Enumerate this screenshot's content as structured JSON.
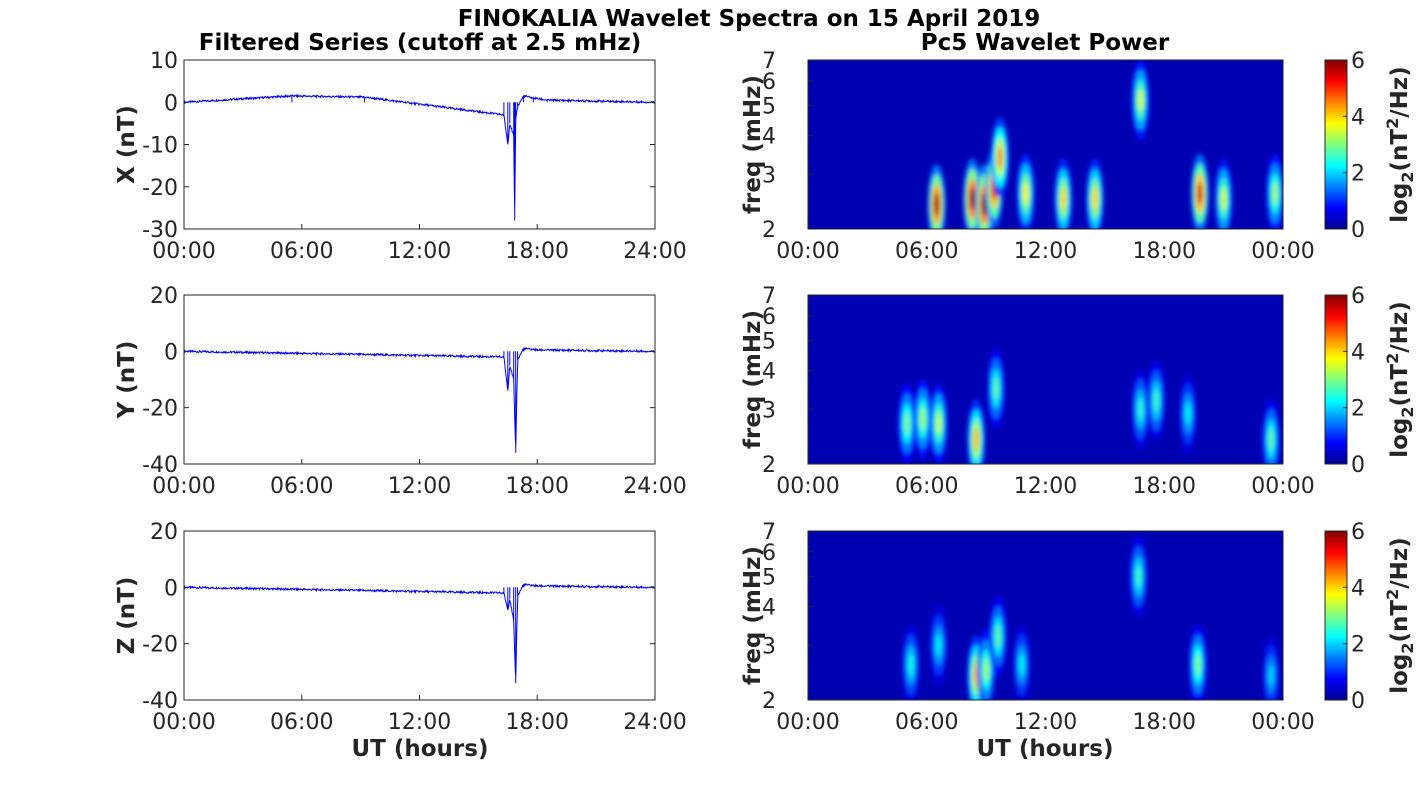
{
  "figure": {
    "title": "FINOKALIA Wavelet Spectra on 15 April 2019",
    "left_title": "Filtered Series (cutoff at 2.5 mHz)",
    "right_title": "Pc5 Wavelet Power",
    "xlabel": "UT (hours)",
    "freq_label": "freq (mHz)",
    "cbar_label": "log2(nT2/Hz)"
  },
  "chart_data": [
    {
      "type": "line",
      "name": "x-series",
      "ylabel": "X (nT)",
      "xlim": [
        0,
        24
      ],
      "ylim": [
        -30,
        10
      ],
      "yticks": [
        "10",
        "0",
        "-10",
        "-20",
        "-30"
      ],
      "xticks": [
        "00:00",
        "06:00",
        "12:00",
        "18:00",
        "24:00"
      ],
      "color": "#0000ff",
      "x": [
        0,
        5.5,
        9.2,
        16.3,
        16.5,
        16.6,
        16.8,
        16.85,
        16.9,
        17.0,
        17.3,
        17.8,
        18.5,
        24
      ],
      "y": [
        0,
        1.5,
        1.2,
        -3,
        -10,
        -5,
        -8,
        -28,
        -4,
        -1,
        1.5,
        1,
        0.5,
        0
      ]
    },
    {
      "type": "line",
      "name": "y-series",
      "ylabel": "Y (nT)",
      "xlim": [
        0,
        24
      ],
      "ylim": [
        -40,
        20
      ],
      "yticks": [
        "20",
        "0",
        "-20",
        "-40"
      ],
      "xticks": [
        "00:00",
        "06:00",
        "12:00",
        "18:00",
        "24:00"
      ],
      "color": "#0000ff",
      "x": [
        0,
        16.3,
        16.5,
        16.6,
        16.8,
        16.9,
        17.0,
        17.3,
        18.0,
        24
      ],
      "y": [
        0,
        -2,
        -14,
        -5,
        -10,
        -36,
        -3,
        1,
        0.5,
        0
      ]
    },
    {
      "type": "line",
      "name": "z-series",
      "ylabel": "Z (nT)",
      "xlim": [
        0,
        24
      ],
      "ylim": [
        -40,
        20
      ],
      "yticks": [
        "20",
        "0",
        "-20",
        "-40"
      ],
      "xticks": [
        "00:00",
        "06:00",
        "12:00",
        "18:00",
        "24:00"
      ],
      "color": "#0000ff",
      "x": [
        0,
        16.3,
        16.5,
        16.6,
        16.8,
        16.9,
        17.0,
        17.3,
        18.0,
        24
      ],
      "y": [
        0,
        -2,
        -8,
        -4,
        -12,
        -34,
        -3,
        1,
        0.5,
        0
      ]
    },
    {
      "type": "heatmap",
      "name": "x-wavelet",
      "ylabel": "freq (mHz)",
      "xlim": [
        0,
        24
      ],
      "ylim": [
        2,
        7
      ],
      "yticks": [
        "7",
        "6",
        "5",
        "4",
        "3",
        "2"
      ],
      "xticks": [
        "00:00",
        "06:00",
        "12:00",
        "18:00",
        "00:00"
      ],
      "colorbar": {
        "range": [
          0,
          6
        ],
        "ticks": [
          "6",
          "4",
          "2",
          "0"
        ],
        "colormap": "jet"
      },
      "blobs": [
        {
          "t": 6.5,
          "f": 2.4,
          "v": 5.8
        },
        {
          "t": 8.3,
          "f": 2.5,
          "v": 6.0
        },
        {
          "t": 8.9,
          "f": 2.4,
          "v": 6.0
        },
        {
          "t": 9.4,
          "f": 2.7,
          "v": 5.5
        },
        {
          "t": 9.7,
          "f": 3.4,
          "v": 4.5
        },
        {
          "t": 11.0,
          "f": 2.6,
          "v": 3.8
        },
        {
          "t": 12.9,
          "f": 2.5,
          "v": 4.0
        },
        {
          "t": 14.5,
          "f": 2.5,
          "v": 4.0
        },
        {
          "t": 16.8,
          "f": 5.2,
          "v": 3.5
        },
        {
          "t": 19.8,
          "f": 2.6,
          "v": 5.5
        },
        {
          "t": 21.0,
          "f": 2.5,
          "v": 3.5
        },
        {
          "t": 23.6,
          "f": 2.6,
          "v": 3.2
        }
      ]
    },
    {
      "type": "heatmap",
      "name": "y-wavelet",
      "ylabel": "freq (mHz)",
      "xlim": [
        0,
        24
      ],
      "ylim": [
        2,
        7
      ],
      "yticks": [
        "7",
        "6",
        "5",
        "4",
        "3",
        "2"
      ],
      "xticks": [
        "00:00",
        "06:00",
        "12:00",
        "18:00",
        "00:00"
      ],
      "colorbar": {
        "range": [
          0,
          6
        ],
        "ticks": [
          "6",
          "4",
          "2",
          "0"
        ],
        "colormap": "jet"
      },
      "blobs": [
        {
          "t": 5.0,
          "f": 2.7,
          "v": 3.0
        },
        {
          "t": 5.8,
          "f": 2.8,
          "v": 3.2
        },
        {
          "t": 6.6,
          "f": 2.7,
          "v": 3.4
        },
        {
          "t": 8.5,
          "f": 2.4,
          "v": 4.2
        },
        {
          "t": 9.5,
          "f": 3.5,
          "v": 2.8
        },
        {
          "t": 16.8,
          "f": 3.0,
          "v": 2.5
        },
        {
          "t": 17.6,
          "f": 3.2,
          "v": 2.6
        },
        {
          "t": 19.2,
          "f": 2.9,
          "v": 2.2
        },
        {
          "t": 23.4,
          "f": 2.4,
          "v": 2.8
        }
      ]
    },
    {
      "type": "heatmap",
      "name": "z-wavelet",
      "ylabel": "freq (mHz)",
      "xlim": [
        0,
        24
      ],
      "ylim": [
        2,
        7
      ],
      "yticks": [
        "7",
        "6",
        "5",
        "4",
        "3",
        "2"
      ],
      "xticks": [
        "00:00",
        "06:00",
        "12:00",
        "18:00",
        "00:00"
      ],
      "colorbar": {
        "range": [
          0,
          6
        ],
        "ticks": [
          "6",
          "4",
          "2",
          "0"
        ],
        "colormap": "jet"
      },
      "blobs": [
        {
          "t": 5.2,
          "f": 2.6,
          "v": 2.4
        },
        {
          "t": 6.6,
          "f": 3.0,
          "v": 2.2
        },
        {
          "t": 8.5,
          "f": 2.4,
          "v": 4.2
        },
        {
          "t": 9.0,
          "f": 2.5,
          "v": 3.2
        },
        {
          "t": 9.6,
          "f": 3.2,
          "v": 2.8
        },
        {
          "t": 10.8,
          "f": 2.6,
          "v": 2.2
        },
        {
          "t": 16.7,
          "f": 5.0,
          "v": 2.6
        },
        {
          "t": 19.7,
          "f": 2.6,
          "v": 3.0
        },
        {
          "t": 23.4,
          "f": 2.4,
          "v": 2.0
        }
      ]
    }
  ]
}
